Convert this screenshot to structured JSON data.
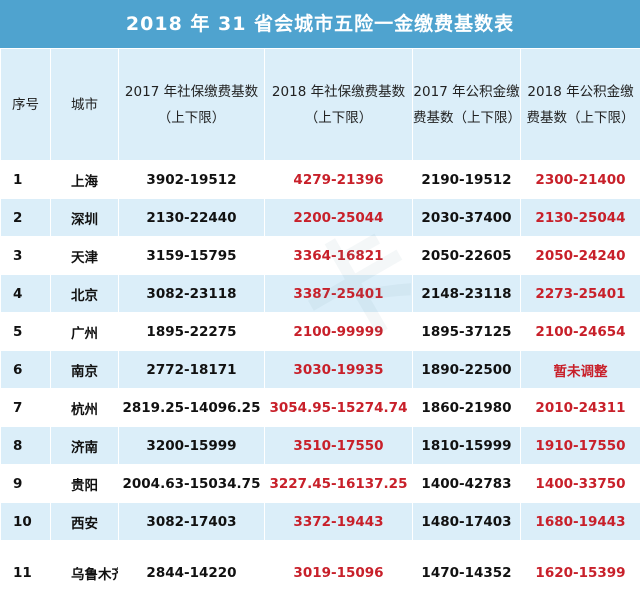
{
  "title": "2018 年 31 省会城市五险一金缴费基数表",
  "columns": [
    "序号",
    "城市",
    "2017 年社保缴费基数（上下限）",
    "2018 年社保缴费基数（上下限）",
    "2017 年公积金缴费基数（上下限）",
    "2018 年公积金缴费基数（上下限）"
  ],
  "rows": [
    [
      "1",
      "上海",
      "3902-19512",
      "4279-21396",
      "2190-19512",
      "2300-21400"
    ],
    [
      "2",
      "深圳",
      "2130-22440",
      "2200-25044",
      "2030-37400",
      "2130-25044"
    ],
    [
      "3",
      "天津",
      "3159-15795",
      "3364-16821",
      "2050-22605",
      "2050-24240"
    ],
    [
      "4",
      "北京",
      "3082-23118",
      "3387-25401",
      "2148-23118",
      "2273-25401"
    ],
    [
      "5",
      "广州",
      "1895-22275",
      "2100-99999",
      "1895-37125",
      "2100-24654"
    ],
    [
      "6",
      "南京",
      "2772-18171",
      "3030-19935",
      "1890-22500",
      "暂未调整"
    ],
    [
      "7",
      "杭州",
      "2819.25-14096.25",
      "3054.95-15274.74",
      "1860-21980",
      "2010-24311"
    ],
    [
      "8",
      "济南",
      "3200-15999",
      "3510-17550",
      "1810-15999",
      "1910-17550"
    ],
    [
      "9",
      "贵阳",
      "2004.63-15034.75",
      "3227.45-16137.25",
      "1400-42783",
      "1400-33750"
    ],
    [
      "10",
      "西安",
      "3082-17403",
      "3372-19443",
      "1480-17403",
      "1680-19443"
    ],
    [
      "11",
      "乌鲁木齐",
      "2844-14220",
      "3019-15096",
      "1470-14352",
      "1620-15399"
    ]
  ],
  "colors": {
    "header": "#4fa3cf",
    "stripe": "#dbeef9",
    "highlight": "#c8202a"
  }
}
